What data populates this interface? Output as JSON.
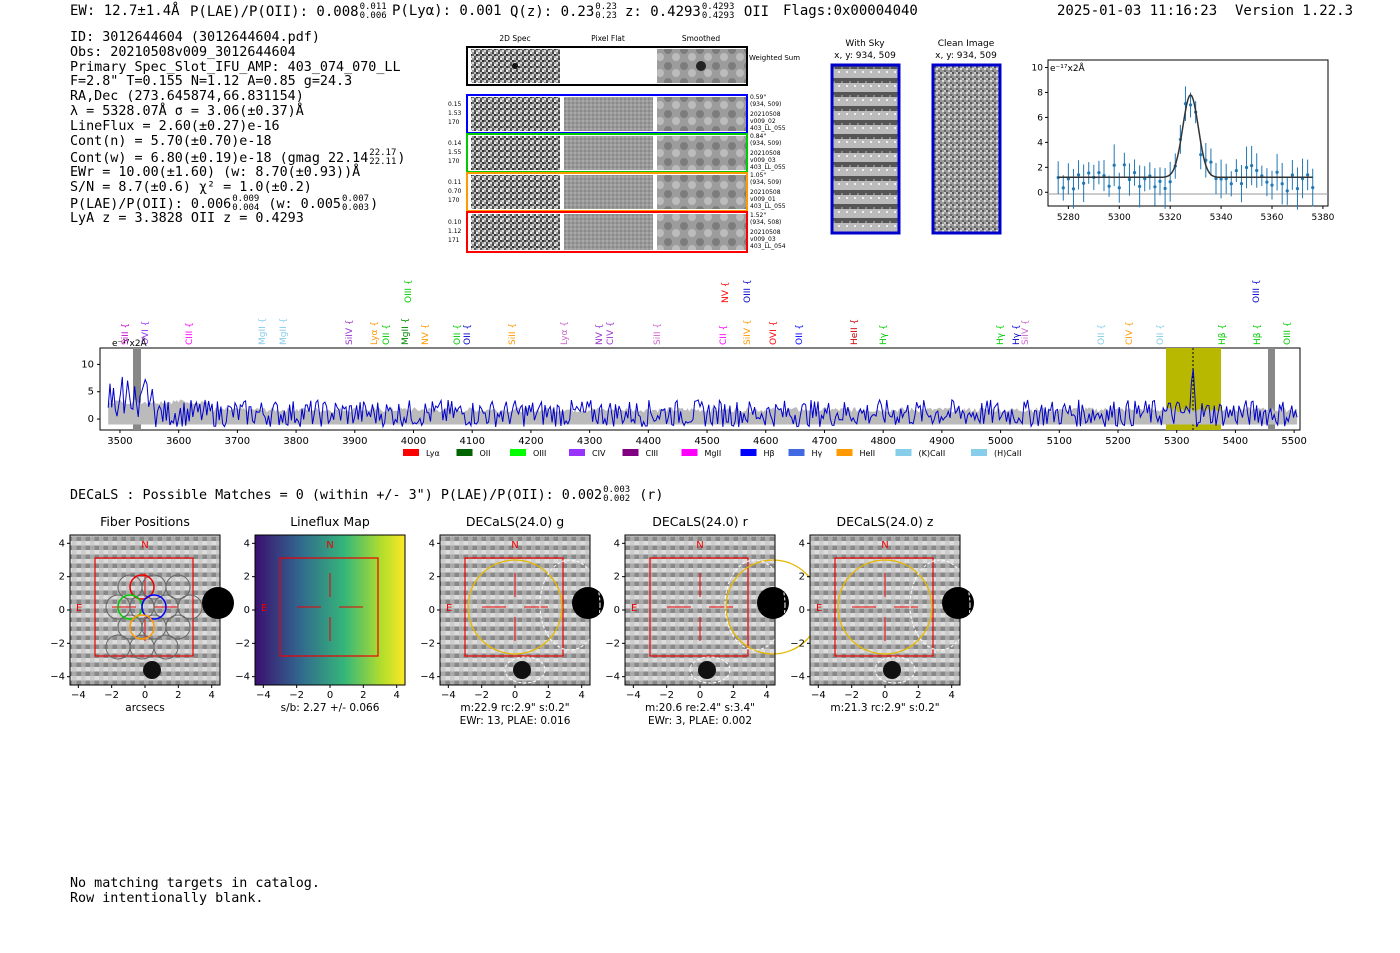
{
  "header": {
    "ew": "EW: 12.7±1.4Å",
    "plae_label": "P(LAE)/P(OII): 0.008",
    "plae_hi": "0.011",
    "plae_lo": "0.006",
    "plya": "P(Lyα): 0.001",
    "qz_label": "Q(z): 0.23",
    "qz_hi": "0.23",
    "qz_lo": "0.23",
    "z_label": "z: 0.4293",
    "z_hi": "0.4293",
    "z_lo": "0.4293",
    "z_line": "OII",
    "flags": "Flags:0x00004040",
    "datetime": "2025-01-03 11:16:23",
    "version": "Version 1.22.3"
  },
  "info": {
    "id": "ID: 3012644604 (3012644604.pdf)",
    "obs": "Obs: 20210508v009_3012644604",
    "primary": "Primary Spec_Slot_IFU_AMP: 403_074_070_LL",
    "fwhm": "F=2.8\"  T=0.155  N=1.12  A=0.85  g=24.3",
    "radec": "RA,Dec (273.645874,66.831154)",
    "lambda": "λ = 5328.07Å  σ = 3.06(±0.37)Å",
    "lineflux": "LineFlux = 2.60(±0.27)e-16",
    "contn": "Cont(n) = 5.70(±0.70)e-18",
    "contw_label": "Cont(w) = 6.80(±0.19)e-18 (gmag 22.14",
    "contw_hi": "22.17",
    "contw_lo": "22.11",
    "contw_end": ")",
    "ewr": "EWr = 10.00(±1.60) (w: 8.70(±0.93))Å",
    "sn": "S/N = 8.7(±0.6)  χ² = 1.0(±0.2)",
    "plae_label": "P(LAE)/P(OII): 0.006",
    "plae_hi": "0.009",
    "plae_lo": "0.004",
    "plae_w": "(w: 0.005",
    "plae_w_hi": "0.007",
    "plae_w_lo": "0.003",
    "plae_end": ")",
    "lyaz": "LyA z = 3.3828  OII z = 0.4293"
  },
  "cutouts": {
    "col_headers": [
      "2D Spec",
      "Pixel Flat",
      "Smoothed"
    ],
    "weighted_sum": "Weighted Sum",
    "rows": [
      {
        "left": [
          "0.15",
          "1.53",
          "170"
        ],
        "right": [
          "0.59\"",
          "(934, 509)",
          "20210508",
          "v009_02",
          "403_LL_055"
        ],
        "color": "#0000ff"
      },
      {
        "left": [
          "0.14",
          "1.55",
          "170"
        ],
        "right": [
          "0.84\"",
          "(934, 509)",
          "20210508",
          "v009_03",
          "403_LL_055"
        ],
        "color": "#00cc00"
      },
      {
        "left": [
          "0.11",
          "0.70",
          "170"
        ],
        "right": [
          "1.05\"",
          "(934, 509)",
          "20210508",
          "v009_01",
          "403_LL_055"
        ],
        "color": "#ff9900"
      },
      {
        "left": [
          "0.10",
          "1.12",
          "171"
        ],
        "right": [
          "1.52\"",
          "(934, 508)",
          "20210508",
          "v009_03",
          "403_LL_054"
        ],
        "color": "#ff0000"
      }
    ]
  },
  "sky_panels": {
    "with_sky_title": "With Sky",
    "with_sky_coord": "x, y: 934, 509",
    "clean_title": "Clean Image",
    "clean_coord": "x, y: 934, 509"
  },
  "zoom_fit": {
    "y_unit": "e⁻¹⁷x2Å",
    "x_ticks": [
      "5280",
      "5300",
      "5320",
      "5340",
      "5360",
      "5380"
    ],
    "y_ticks": [
      "0",
      "2",
      "4",
      "6",
      "8",
      "10"
    ]
  },
  "spectrum": {
    "y_unit": "e⁻¹⁷x2Å",
    "y_ticks": [
      "0",
      "5",
      "10"
    ],
    "x_ticks": [
      "3500",
      "3600",
      "3700",
      "3800",
      "3900",
      "4000",
      "4100",
      "4200",
      "4300",
      "4400",
      "4500",
      "4600",
      "4700",
      "4800",
      "4900",
      "5000",
      "5100",
      "5200",
      "5300",
      "5400",
      "5500"
    ],
    "line_labels": [
      {
        "text": "SiII",
        "color": "#cc00cc"
      },
      {
        "text": "OVI",
        "color": "#9933ff"
      },
      {
        "text": "CIII",
        "color": "#ff00ff"
      },
      {
        "text": "MgII",
        "color": "#87ceeb"
      },
      {
        "text": "MgII",
        "color": "#87ceeb"
      },
      {
        "text": "SiIV",
        "color": "#9933cc"
      },
      {
        "text": "Lyα",
        "color": "#ff9900"
      },
      {
        "text": "OII",
        "color": "#00cc00"
      },
      {
        "text": "MgII",
        "color": "#008800"
      },
      {
        "text": "NV",
        "color": "#ff9900"
      },
      {
        "text": "OII",
        "color": "#00cc00"
      },
      {
        "text": "OII",
        "color": "#0000cc"
      },
      {
        "text": "SiII",
        "color": "#ff9900"
      },
      {
        "text": "Lyα",
        "color": "#cc66cc"
      },
      {
        "text": "NV",
        "color": "#9933cc"
      },
      {
        "text": "CIV",
        "color": "#9933cc"
      },
      {
        "text": "SiII",
        "color": "#cc66cc"
      },
      {
        "text": "CII",
        "color": "#ff00ff"
      },
      {
        "text": "SiIV",
        "color": "#ff9900"
      },
      {
        "text": "OVI",
        "color": "#ff0000"
      },
      {
        "text": "OII",
        "color": "#0000ff"
      },
      {
        "text": "HeII",
        "color": "#cc0000"
      },
      {
        "text": "Hγ",
        "color": "#00cc00"
      },
      {
        "text": "Hγ",
        "color": "#00cc00"
      },
      {
        "text": "Hγ",
        "color": "#0000cc"
      },
      {
        "text": "SiIV",
        "color": "#cc66cc"
      },
      {
        "text": "OII",
        "color": "#87ceeb"
      },
      {
        "text": "CIV",
        "color": "#ff9900"
      },
      {
        "text": "OII",
        "color": "#87ceeb"
      },
      {
        "text": "Hβ",
        "color": "#00cc00"
      },
      {
        "text": "Hβ",
        "color": "#00cc00"
      },
      {
        "text": "OIII",
        "color": "#00cc00"
      },
      {
        "text": "OIII",
        "color": "#00cc00"
      },
      {
        "text": "NV",
        "color": "#ff0000"
      },
      {
        "text": "OIII",
        "color": "#0000cc"
      },
      {
        "text": "OIII",
        "color": "#0000cc"
      }
    ],
    "legend": [
      {
        "label": "Lyα",
        "color": "#ff0000"
      },
      {
        "label": "OII",
        "color": "#006400"
      },
      {
        "label": "OIII",
        "color": "#00ff00"
      },
      {
        "label": "CIV",
        "color": "#9933ff"
      },
      {
        "label": "CIII",
        "color": "#800080"
      },
      {
        "label": "MgII",
        "color": "#ff00ff"
      },
      {
        "label": "Hβ",
        "color": "#0000ff"
      },
      {
        "label": "Hγ",
        "color": "#4169e1"
      },
      {
        "label": "HeII",
        "color": "#ff9900"
      },
      {
        "label": "(K)CaII",
        "color": "#87ceeb"
      },
      {
        "label": "(H)CaII",
        "color": "#87ceeb"
      }
    ]
  },
  "decals": {
    "headline_label": "DECaLS : Possible Matches = 0 (within +/- 3\")  P(LAE)/P(OII): 0.002",
    "headline_hi": "0.003",
    "headline_lo": "0.002",
    "headline_end": "(r)",
    "axis_ticks": [
      "−4",
      "−2",
      "0",
      "2",
      "4"
    ],
    "compass_n": "N",
    "compass_e": "E",
    "panels": [
      {
        "title": "Fiber Positions",
        "caption": [
          "arcsecs"
        ]
      },
      {
        "title": "Lineflux Map",
        "caption": [
          "s/b: 2.27 +/- 0.066"
        ]
      },
      {
        "title": "DECaLS(24.0) g",
        "caption": [
          "m:22.9 rc:2.9\"  s:0.2\"",
          "EWr: 13, PLAE: 0.016"
        ]
      },
      {
        "title": "DECaLS(24.0) r",
        "caption": [
          "m:20.6  re:2.4\"  s:3.4\"",
          "EWr: 3, PLAE: 0.002"
        ]
      },
      {
        "title": "DECaLS(24.0) z",
        "caption": [
          "m:21.3 rc:2.9\"  s:0.2\""
        ]
      }
    ]
  },
  "footer": {
    "line1": "No matching targets in catalog.",
    "line2": "Row intentionally blank."
  }
}
